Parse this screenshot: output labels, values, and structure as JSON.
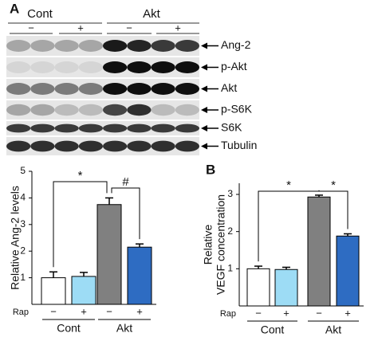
{
  "blot": {
    "panel": "A",
    "groups": [
      "Cont",
      "Akt"
    ],
    "treatments": [
      "−",
      "+",
      "−",
      "+"
    ],
    "rows": [
      "Ang-2",
      "p-Akt",
      "Akt",
      "p-S6K",
      "S6K",
      "Tubulin"
    ]
  },
  "chart_data": [
    {
      "type": "bar",
      "ylabel": [
        "Relative Ang-2 levels"
      ],
      "ylim": [
        0,
        5
      ],
      "yticks": [
        1,
        2,
        3,
        4,
        5
      ],
      "categories": [
        "−",
        "+",
        "−",
        "+"
      ],
      "groups": [
        "Cont",
        "Akt"
      ],
      "row_label": "Rap",
      "values": [
        1.0,
        1.05,
        3.75,
        2.15
      ],
      "errors": [
        0.22,
        0.15,
        0.25,
        0.12
      ],
      "colors": [
        "#ffffff",
        "#9ddcf5",
        "#808080",
        "#2e6cc2"
      ],
      "annotations": [
        "*",
        "#"
      ]
    },
    {
      "type": "bar",
      "panel": "B",
      "ylabel": [
        "Relative",
        "VEGF concentration"
      ],
      "ylim": [
        0,
        3.3
      ],
      "yticks": [
        1,
        2,
        3
      ],
      "categories": [
        "−",
        "+",
        "−",
        "+"
      ],
      "groups": [
        "Cont",
        "Akt"
      ],
      "row_label": "Rap",
      "values": [
        1.0,
        0.98,
        2.93,
        1.88
      ],
      "errors": [
        0.07,
        0.06,
        0.05,
        0.06
      ],
      "colors": [
        "#ffffff",
        "#9ddcf5",
        "#808080",
        "#2e6cc2"
      ],
      "annotations": [
        "*",
        "*"
      ]
    }
  ]
}
